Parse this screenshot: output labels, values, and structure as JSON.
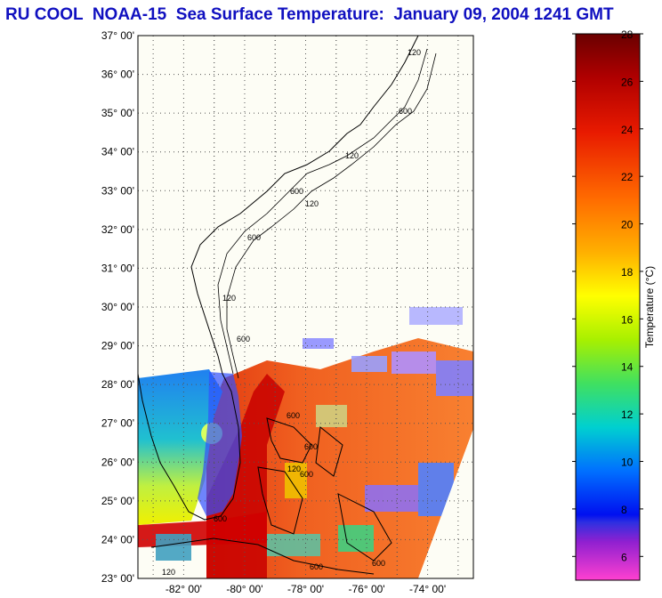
{
  "title": "RU COOL  NOAA-15  Sea Surface Temperature:  January 09, 2004 1241 GMT",
  "map": {
    "lat_labels": [
      "37° 00'",
      "36° 00'",
      "35° 00'",
      "34° 00'",
      "33° 00'",
      "32° 00'",
      "31° 00'",
      "30° 00'",
      "29° 00'",
      "28° 00'",
      "27° 00'",
      "26° 00'",
      "25° 00'",
      "24° 00'",
      "23° 00'"
    ],
    "lon_labels": [
      "-82° 00'",
      "-80° 00'",
      "-78° 00'",
      "-76° 00'",
      "-74° 00'"
    ],
    "lat_range": [
      23,
      37
    ],
    "lon_range": [
      -83.5,
      -72.5
    ],
    "grid": true,
    "contour_labels": [
      "120",
      "600",
      "120",
      "600",
      "120",
      "600",
      "120",
      "600",
      "600",
      "600",
      "120",
      "600",
      "600",
      "600",
      "120",
      "600"
    ]
  },
  "colorbar": {
    "ticks": [
      "28",
      "26",
      "24",
      "22",
      "20",
      "18",
      "16",
      "14",
      "12",
      "10",
      "8",
      "6"
    ],
    "range": [
      5,
      28
    ],
    "label": "Temperature (°C)"
  }
}
